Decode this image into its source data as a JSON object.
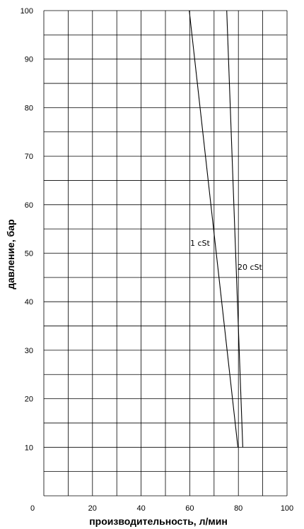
{
  "chart_data": {
    "type": "line",
    "title": "",
    "xlabel": "производительность, л/мин",
    "ylabel": "давление, бар",
    "xlim": [
      0,
      100
    ],
    "ylim": [
      0,
      100
    ],
    "x_ticks": [
      "0",
      "20",
      "40",
      "60",
      "80",
      "100"
    ],
    "y_ticks": [
      "10",
      "20",
      "30",
      "40",
      "50",
      "60",
      "70",
      "80",
      "90",
      "100"
    ],
    "grid": true,
    "series": [
      {
        "name": "1 cSt",
        "points": [
          [
            59.8,
            100
          ],
          [
            79.8,
            10
          ]
        ]
      },
      {
        "name": "20 cSt",
        "points": [
          [
            75.2,
            100
          ],
          [
            81.8,
            10
          ]
        ]
      }
    ]
  }
}
